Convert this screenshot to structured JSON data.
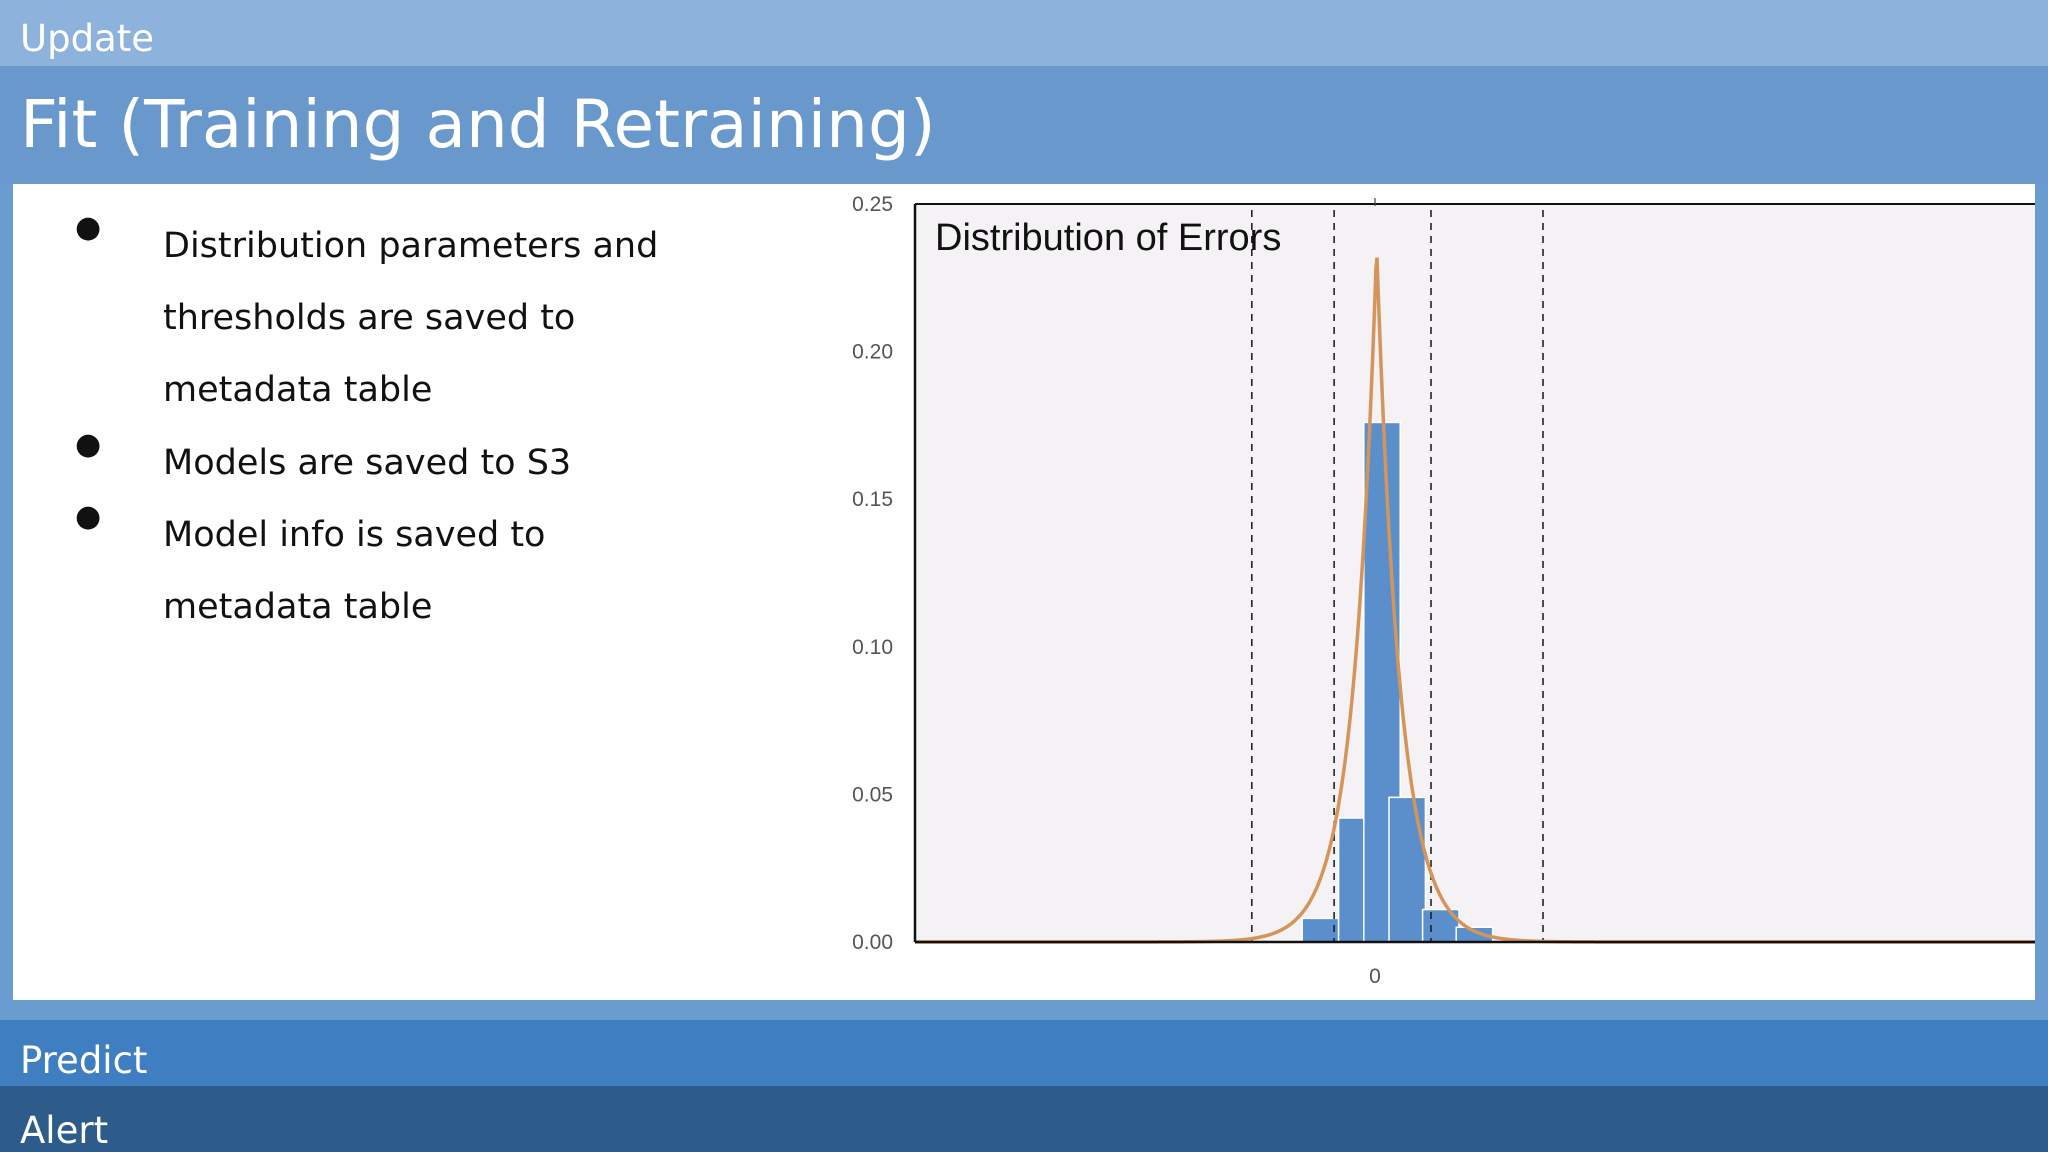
{
  "sections": {
    "update": "Update",
    "fit": "Fit (Training and Retraining)",
    "predict": "Predict",
    "alert": "Alert"
  },
  "bullets": [
    "Distribution parameters and thresholds are saved to metadata table",
    "Models are saved to S3",
    "Model info is saved to metadata table"
  ],
  "bullet_symbol": "●",
  "colors": {
    "bar": "#5b8fcc",
    "curve": "#d4955a",
    "plot_bg": "#f4f2f4",
    "band_update": "#8db3dc",
    "band_fit": "#6898cc",
    "band_predict": "#3f7fc1",
    "band_alert": "#2d5b8a"
  },
  "chart_data": {
    "type": "bar",
    "title": "Distribution of Errors",
    "xlabel": "",
    "ylabel": "",
    "x_ticks": [
      "0"
    ],
    "y_ticks": [
      "0.00",
      "0.05",
      "0.10",
      "0.15",
      "0.20",
      "0.25"
    ],
    "ylim": [
      0,
      0.25
    ],
    "xlim": [
      -1.0,
      1.0
    ],
    "bin_width": 0.065,
    "bins": [
      {
        "x0": -0.13,
        "value": 0.008
      },
      {
        "x0": -0.065,
        "value": 0.042
      },
      {
        "x0": -0.02,
        "value": 0.176
      },
      {
        "x0": 0.025,
        "value": 0.049
      },
      {
        "x0": 0.085,
        "value": 0.011
      },
      {
        "x0": 0.145,
        "value": 0.005
      }
    ],
    "fit_curve": {
      "type": "laplace-like",
      "center": 0.003,
      "peak": 0.235,
      "scale": 0.042
    },
    "threshold_lines": [
      -0.22,
      -0.073,
      0.1,
      0.3
    ],
    "grid": false
  }
}
